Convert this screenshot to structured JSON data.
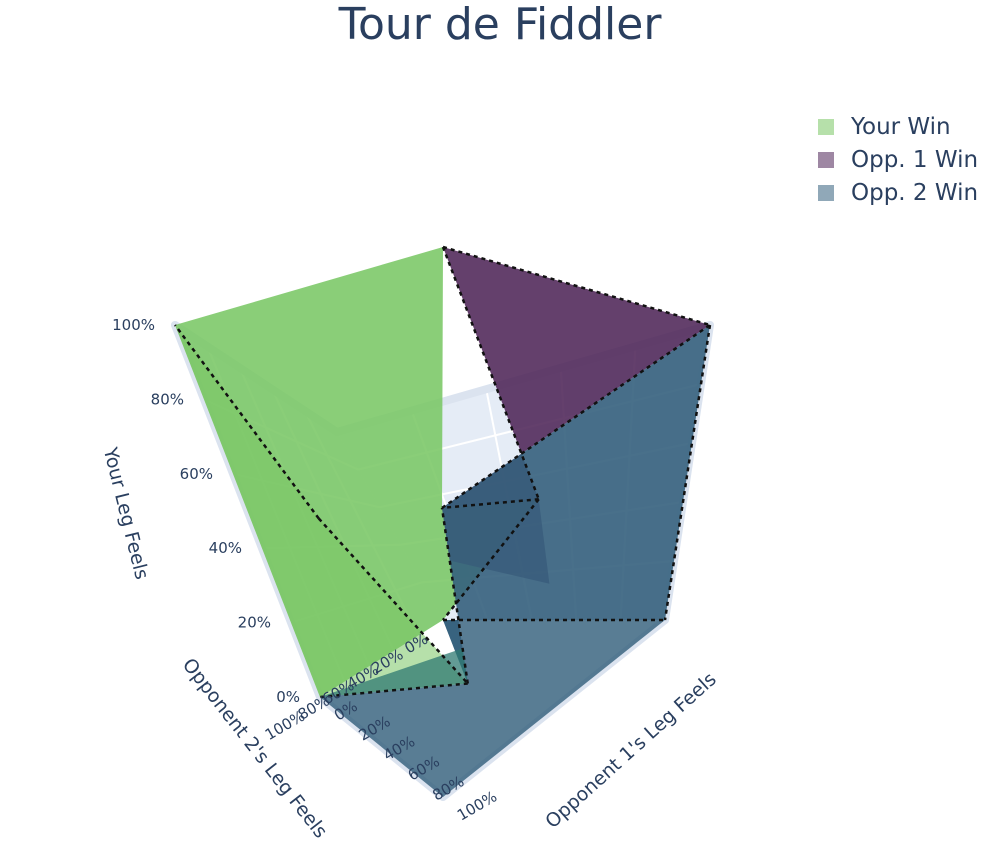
{
  "chart_data": {
    "type": "mesh3d",
    "title": "Tour de Fiddler",
    "axes": {
      "x": {
        "title": "Opponent 1's Leg Feels",
        "range": [
          0,
          1
        ],
        "ticks": [
          "0%",
          "20%",
          "40%",
          "60%",
          "80%",
          "100%"
        ]
      },
      "y": {
        "title": "Opponent 2's Leg Feels",
        "range": [
          0,
          1
        ],
        "ticks": [
          "0%",
          "20%",
          "40%",
          "60%",
          "80%",
          "100%"
        ]
      },
      "z": {
        "title": "Your Leg Feels",
        "range": [
          0,
          1
        ],
        "ticks": [
          "0%",
          "20%",
          "40%",
          "60%",
          "80%",
          "100%"
        ]
      }
    },
    "legend_position": "top-right",
    "series": [
      {
        "name": "Your Win",
        "color": "#7ac765"
      },
      {
        "name": "Opp. 1 Win",
        "color": "#4e2558"
      },
      {
        "name": "Opp. 2 Win",
        "color": "#35607d"
      }
    ],
    "key_vertices": {
      "center": [
        0.5,
        0.5,
        0.5
      ],
      "mid_edges": [
        [
          0.5,
          0,
          0.5
        ],
        [
          0,
          0.5,
          0.5
        ],
        [
          0.5,
          0.5,
          0
        ]
      ],
      "corners": [
        [
          0,
          0,
          0
        ],
        [
          1,
          0,
          0
        ],
        [
          0,
          1,
          0
        ],
        [
          1,
          1,
          0
        ],
        [
          0,
          0,
          1
        ],
        [
          1,
          0,
          1
        ],
        [
          0,
          1,
          1
        ],
        [
          1,
          1,
          1
        ]
      ]
    }
  }
}
